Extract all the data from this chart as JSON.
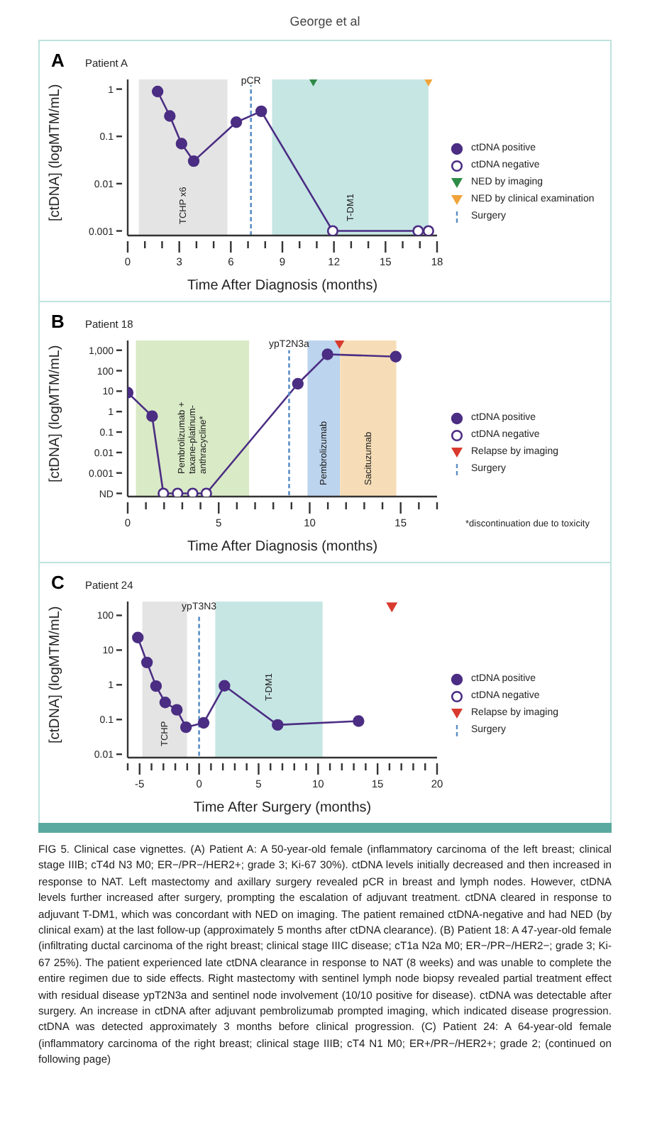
{
  "chart_data": [
    {
      "type": "line",
      "title": "A",
      "subtitle": "Patient A",
      "xlabel": "Time After Diagnosis (months)",
      "ylabel": "[ctDNA] (logMTM/mL)",
      "log": "y",
      "grid": false,
      "legend": "right",
      "xlim": [
        0,
        18
      ],
      "xticks": [
        0,
        {
          "value": 1,
          "label": null
        },
        {
          "value": 2,
          "label": null
        },
        3,
        {
          "value": 4,
          "label": null
        },
        {
          "value": 5,
          "label": null
        },
        6,
        {
          "value": 7,
          "label": null
        },
        {
          "value": 8,
          "label": null
        },
        9,
        {
          "value": 10,
          "label": null
        },
        {
          "value": 11,
          "label": null
        },
        12,
        {
          "value": 13,
          "label": null
        },
        {
          "value": 14,
          "label": null
        },
        15,
        {
          "value": 16,
          "label": null
        },
        {
          "value": 17,
          "label": null
        },
        18
      ],
      "ylim": [
        0.0008,
        1.6
      ],
      "yticks": [
        0.001,
        0.01,
        0.1,
        1
      ],
      "bands": [
        {
          "axis": "x",
          "from": 0.65,
          "to": 5.8,
          "label": "TCHP x6",
          "color": "#e4e4e4"
        },
        {
          "axis": "x",
          "from": 8.4,
          "to": 17.5,
          "label": "T-DM1",
          "color": "#c6e6e4"
        }
      ],
      "annotations": [
        "George et al",
        {
          "text": "pCR",
          "x": 7.17,
          "y": 1.3
        }
      ],
      "series": [
        {
          "type": "line",
          "color": "#4b2d83",
          "marker": "none",
          "x": [
            1.74,
            2.45,
            3.13,
            3.84,
            6.32,
            7.77,
            11.93,
            16.9,
            17.5
          ],
          "values": [
            0.89,
            0.27,
            0.07,
            0.03,
            0.2,
            0.34,
            0.001,
            0.001,
            0.001
          ]
        },
        {
          "type": "scatter",
          "name": "ctDNA positive",
          "color": "#4b2d83",
          "marker": "circle",
          "x": [
            1.74,
            2.45,
            3.13,
            3.84,
            6.32,
            7.77
          ],
          "values": [
            0.89,
            0.27,
            0.07,
            0.03,
            0.2,
            0.34
          ]
        },
        {
          "type": "scatter",
          "name": "ctDNA negative",
          "color": "#4b2d83",
          "marker": "open circle",
          "x": [
            11.93,
            16.9,
            17.5
          ],
          "values": [
            0.001,
            0.001,
            0.001
          ]
        },
        {
          "type": "scatter",
          "name": "NED by imaging",
          "color": "#2e8b46",
          "marker": "triangle",
          "x": [
            10.8
          ],
          "values": [
            1.45
          ]
        },
        {
          "type": "scatter",
          "name": "NED by clinical examination",
          "color": "#f0a43a",
          "marker": "triangle",
          "x": [
            17.5
          ],
          "values": [
            1.45
          ]
        },
        {
          "type": "line",
          "name": "Surgery",
          "color": "#5b8fc7",
          "marker": "none",
          "line_style": "dashed",
          "x": [
            7.17,
            7.17
          ],
          "values": [
            0.0008,
            1.2
          ]
        }
      ]
    },
    {
      "type": "line",
      "title": "B",
      "subtitle": "Patient 18",
      "xlabel": "Time After Diagnosis (months)",
      "ylabel": "[ctDNA] (logMTM/mL)",
      "log": "y",
      "grid": false,
      "legend": "right",
      "xlim": [
        0,
        17
      ],
      "xticks": [
        0,
        {
          "value": 1,
          "label": null
        },
        {
          "value": 2,
          "label": null
        },
        {
          "value": 3,
          "label": null
        },
        {
          "value": 4,
          "label": null
        },
        5,
        {
          "value": 6,
          "label": null
        },
        {
          "value": 7,
          "label": null
        },
        {
          "value": 8,
          "label": null
        },
        {
          "value": 9,
          "label": null
        },
        10,
        {
          "value": 11,
          "label": null
        },
        {
          "value": 12,
          "label": null
        },
        {
          "value": 13,
          "label": null
        },
        {
          "value": 14,
          "label": null
        },
        15,
        {
          "value": 16,
          "label": null
        },
        {
          "value": 17,
          "label": null
        }
      ],
      "ylim": [
        7e-05,
        3000
      ],
      "yticks": [
        {
          "value": 0.0001,
          "label": "ND"
        },
        0.001,
        0.01,
        0.1,
        1,
        10,
        100,
        {
          "value": 1000,
          "label": "1,000"
        }
      ],
      "bands": [
        {
          "axis": "x",
          "from": 0.45,
          "to": 6.67,
          "label": "Pembrolizumab +\ntaxane-platinum-\nanthracycline*",
          "color": "#d9eac6"
        },
        {
          "axis": "x",
          "from": 9.88,
          "to": 11.67,
          "label": "Pembrolizumab",
          "color": "#bcd4ee"
        },
        {
          "axis": "x",
          "from": 11.67,
          "to": 14.76,
          "label": "Sacituzumab",
          "color": "#f6ddb7"
        }
      ],
      "annotations": [
        "*discontinuation due to toxicity",
        {
          "text": "ypT2N3a",
          "x": 8.87,
          "y": 1500
        }
      ],
      "series": [
        {
          "type": "line",
          "color": "#4b2d83",
          "marker": "none",
          "x": [
            0,
            1.34,
            1.96,
            2.74,
            3.57,
            4.32,
            9.35,
            10.98,
            14.73
          ],
          "values": [
            8.5,
            0.6,
            0.0001,
            0.0001,
            0.0001,
            0.0001,
            23,
            630,
            490
          ]
        },
        {
          "type": "scatter",
          "name": "ctDNA positive",
          "color": "#4b2d83",
          "marker": "circle",
          "x": [
            0,
            1.34,
            9.35,
            10.98,
            14.73
          ],
          "values": [
            8.5,
            0.6,
            23,
            630,
            490
          ]
        },
        {
          "type": "scatter",
          "name": "ctDNA negative",
          "color": "#4b2d83",
          "marker": "open circle",
          "x": [
            1.96,
            2.74,
            3.57,
            4.32
          ],
          "values": [
            0.0001,
            0.0001,
            0.0001,
            0.0001
          ]
        },
        {
          "type": "scatter",
          "name": "Relapse by imaging",
          "color": "#d83a2e",
          "marker": "triangle",
          "x": [
            11.64
          ],
          "values": [
            2000
          ]
        },
        {
          "type": "line",
          "name": "Surgery",
          "color": "#5b8fc7",
          "marker": "none",
          "line_style": "dashed",
          "x": [
            8.87,
            8.87
          ],
          "values": [
            8e-05,
            1000
          ]
        }
      ]
    },
    {
      "type": "line",
      "title": "C",
      "subtitle": "Patient 24",
      "xlabel": "Time After Surgery (months)",
      "ylabel": "[ctDNA] (logMTM/mL)",
      "log": "y",
      "grid": false,
      "legend": "right",
      "xlim": [
        -6,
        20
      ],
      "xticks": [
        {
          "value": -6,
          "label": null
        },
        -5,
        {
          "value": -4,
          "label": null
        },
        {
          "value": -3,
          "label": null
        },
        {
          "value": -2,
          "label": null
        },
        {
          "value": -1,
          "label": null
        },
        0,
        {
          "value": 1,
          "label": null
        },
        {
          "value": 2,
          "label": null
        },
        {
          "value": 3,
          "label": null
        },
        {
          "value": 4,
          "label": null
        },
        5,
        {
          "value": 6,
          "label": null
        },
        {
          "value": 7,
          "label": null
        },
        {
          "value": 8,
          "label": null
        },
        {
          "value": 9,
          "label": null
        },
        10,
        {
          "value": 11,
          "label": null
        },
        {
          "value": 12,
          "label": null
        },
        {
          "value": 13,
          "label": null
        },
        {
          "value": 14,
          "label": null
        },
        15,
        {
          "value": 16,
          "label": null
        },
        {
          "value": 17,
          "label": null
        },
        {
          "value": 18,
          "label": null
        },
        {
          "value": 19,
          "label": null
        },
        20
      ],
      "ylim": [
        0.008,
        250
      ],
      "yticks": [
        0.01,
        0.1,
        1,
        10,
        100
      ],
      "bands": [
        {
          "axis": "x",
          "from": -4.77,
          "to": -1.02,
          "label": "TCHP",
          "color": "#e4e4e4"
        },
        {
          "axis": "x",
          "from": 1.36,
          "to": 10.38,
          "label": "T-DM1",
          "color": "#c6e6e4"
        }
      ],
      "annotations": [
        "FIG 5. Clinical case vignettes. (A) Patient A: A 50-year-old female (inflammatory carcinoma of the left breast; clinical stage IIIB; cT4d N3 M0; ER−/PR−/HER2+; grade 3; Ki-67 30%). ctDNA levels initially decreased and then increased in response to NAT. Left mastectomy and axillary surgery revealed pCR in breast and lymph nodes. However, ctDNA levels further increased after surgery, prompting the escalation of adjuvant treatment. ctDNA cleared in response to adjuvant T-DM1, which was concordant with NED on imaging. The patient remained ctDNA-negative and had NED (by clinical exam) at the last follow-up (approximately 5 months after ctDNA clearance). (B) Patient 18: A 47-year-old female (infiltrating ductal carcinoma of the right breast; clinical stage IIIC disease; cT1a N2a M0; ER−/PR−/HER2−; grade 3; Ki-67 25%). The patient experienced late ctDNA clearance in response to NAT (8 weeks) and was unable to complete the entire regimen due to side effects. Right mastectomy with sentinel lymph node biopsy revealed partial treatment effect with residual disease ypT2N3a and sentinel node involvement (10/10 positive for disease). ctDNA was detectable after surgery. An increase in ctDNA after adjuvant pembrolizumab prompted imaging, which indicated disease progression. ctDNA was detected approximately 3 months before clinical progression. (C) Patient 24: A 64-year-old female (inflammatory carcinoma of the right breast; clinical stage IIIB; cT4 N1 M0; ER+/PR−/HER2+; grade 2;  (continued on following page)",
        {
          "text": "ypT3N3",
          "x": 0,
          "y": 150
        }
      ],
      "series": [
        {
          "type": "line",
          "color": "#4b2d83",
          "marker": "none",
          "x": [
            -5.15,
            -4.38,
            -3.62,
            -2.85,
            -1.87,
            -1.1,
            0.38,
            2.13,
            6.6,
            13.4
          ],
          "values": [
            23,
            4.4,
            0.92,
            0.31,
            0.19,
            0.06,
            0.08,
            0.94,
            0.07,
            0.09
          ]
        },
        {
          "type": "scatter",
          "name": "ctDNA positive",
          "color": "#4b2d83",
          "marker": "circle",
          "x": [
            -5.15,
            -4.38,
            -3.62,
            -2.85,
            -1.87,
            -1.1,
            0.38,
            2.13,
            6.6,
            13.4
          ],
          "values": [
            23,
            4.4,
            0.92,
            0.31,
            0.19,
            0.06,
            0.08,
            0.94,
            0.07,
            0.09
          ]
        },
        {
          "type": "scatter",
          "name": "ctDNA negative",
          "color": "#4b2d83",
          "marker": "open circle"
        },
        {
          "type": "scatter",
          "name": "Relapse by imaging",
          "color": "#d83a2e",
          "marker": "triangle",
          "x": [
            16.2
          ],
          "values": [
            170
          ]
        },
        {
          "type": "line",
          "name": "Surgery",
          "color": "#5b8fc7",
          "marker": "none",
          "line_style": "dashed",
          "x": [
            0,
            0
          ],
          "values": [
            0.009,
            100
          ]
        }
      ]
    }
  ]
}
